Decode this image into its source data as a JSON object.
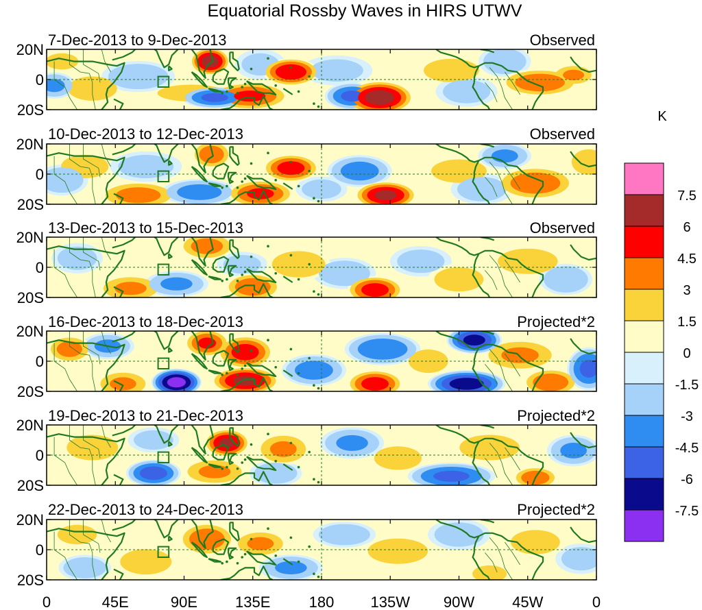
{
  "chart_data": {
    "type": "heatmap",
    "title": "Equatorial Rossby Waves in HIRS UTWV",
    "units": "K",
    "x_ticks": [
      "0",
      "45E",
      "90E",
      "135E",
      "180",
      "135W",
      "90W",
      "45W",
      "0"
    ],
    "y_ticks": [
      "20N",
      "0",
      "20S"
    ],
    "xlim_deg_east": [
      0,
      360
    ],
    "ylim_deg": [
      -20,
      20
    ],
    "colorbar": {
      "levels": [
        "7.5",
        "6",
        "4.5",
        "3",
        "1.5",
        "0",
        "-1.5",
        "-3",
        "-4.5",
        "-6",
        "-7.5"
      ],
      "colors": [
        "#ff77c2",
        "#a52a2a",
        "#ff0000",
        "#ff7a00",
        "#fad23a",
        "#fffcc7",
        "#d8f0fc",
        "#a6d1f8",
        "#2f8df2",
        "#3c63e6",
        "#0a0a8c",
        "#8b2ff0"
      ]
    },
    "panels": [
      {
        "period": "7-Dec-2013 to 9-Dec-2013",
        "label": "Observed",
        "features": [
          {
            "lon": 107,
            "lat": 12,
            "sx": 7,
            "sy": 5,
            "v": 6.5
          },
          {
            "lon": 160,
            "lat": 5,
            "sx": 10,
            "sy": 5,
            "v": 5.5
          },
          {
            "lon": 218,
            "lat": -12,
            "sx": 12,
            "sy": 6,
            "v": 6.5
          },
          {
            "lon": 133,
            "lat": -11,
            "sx": 14,
            "sy": 5,
            "v": 4.5
          },
          {
            "lon": 95,
            "lat": -9,
            "sx": 16,
            "sy": 4,
            "v": 2.5
          },
          {
            "lon": 30,
            "lat": -6,
            "sx": 12,
            "sy": 6,
            "v": 2.2
          },
          {
            "lon": 10,
            "lat": 12,
            "sx": 8,
            "sy": 4,
            "v": 2.2
          },
          {
            "lon": 323,
            "lat": -2,
            "sx": 14,
            "sy": 5,
            "v": 4.0
          },
          {
            "lon": 345,
            "lat": 3,
            "sx": 8,
            "sy": 4,
            "v": 3.0
          },
          {
            "lon": 265,
            "lat": 6,
            "sx": 14,
            "sy": 6,
            "v": 2.0
          },
          {
            "lon": 110,
            "lat": -12,
            "sx": 12,
            "sy": 4,
            "v": -4.5
          },
          {
            "lon": 200,
            "lat": -11,
            "sx": 10,
            "sy": 5,
            "v": -4.5
          },
          {
            "lon": 60,
            "lat": 2,
            "sx": 14,
            "sy": 6,
            "v": -2.5
          },
          {
            "lon": 5,
            "lat": -4,
            "sx": 8,
            "sy": 5,
            "v": -3.0
          },
          {
            "lon": 275,
            "lat": -8,
            "sx": 12,
            "sy": 6,
            "v": -2.0
          },
          {
            "lon": 300,
            "lat": 12,
            "sx": 10,
            "sy": 6,
            "v": -2.5
          },
          {
            "lon": 190,
            "lat": 6,
            "sx": 14,
            "sy": 6,
            "v": -1.8
          },
          {
            "lon": 140,
            "lat": 10,
            "sx": 10,
            "sy": 6,
            "v": -1.8
          }
        ]
      },
      {
        "period": "10-Dec-2013 to 12-Dec-2013",
        "label": "Observed",
        "features": [
          {
            "lon": 108,
            "lat": 13,
            "sx": 7,
            "sy": 5,
            "v": 4.0
          },
          {
            "lon": 160,
            "lat": 4,
            "sx": 10,
            "sy": 5,
            "v": 5.0
          },
          {
            "lon": 222,
            "lat": -14,
            "sx": 11,
            "sy": 5,
            "v": 6.0
          },
          {
            "lon": 140,
            "lat": -13,
            "sx": 12,
            "sy": 5,
            "v": 4.5
          },
          {
            "lon": 60,
            "lat": -14,
            "sx": 14,
            "sy": 5,
            "v": 3.5
          },
          {
            "lon": 25,
            "lat": 5,
            "sx": 12,
            "sy": 6,
            "v": 2.0
          },
          {
            "lon": 320,
            "lat": -6,
            "sx": 14,
            "sy": 6,
            "v": 4.0
          },
          {
            "lon": 355,
            "lat": 8,
            "sx": 8,
            "sy": 6,
            "v": 2.5
          },
          {
            "lon": 270,
            "lat": 2,
            "sx": 14,
            "sy": 6,
            "v": 2.0
          },
          {
            "lon": 100,
            "lat": -12,
            "sx": 14,
            "sy": 5,
            "v": -3.5
          },
          {
            "lon": 205,
            "lat": 2,
            "sx": 12,
            "sy": 6,
            "v": -3.5
          },
          {
            "lon": 65,
            "lat": 5,
            "sx": 14,
            "sy": 6,
            "v": -2.0
          },
          {
            "lon": 10,
            "lat": -4,
            "sx": 10,
            "sy": 6,
            "v": -2.5
          },
          {
            "lon": 285,
            "lat": -10,
            "sx": 12,
            "sy": 6,
            "v": -2.2
          },
          {
            "lon": 300,
            "lat": 12,
            "sx": 10,
            "sy": 5,
            "v": -3.0
          },
          {
            "lon": 180,
            "lat": -10,
            "sx": 10,
            "sy": 5,
            "v": -2.0
          }
        ]
      },
      {
        "period": "13-Dec-2013 to 15-Dec-2013",
        "label": "Observed",
        "features": [
          {
            "lon": 105,
            "lat": 14,
            "sx": 10,
            "sy": 5,
            "v": 3.5
          },
          {
            "lon": 165,
            "lat": 2,
            "sx": 12,
            "sy": 6,
            "v": 2.8
          },
          {
            "lon": 215,
            "lat": -15,
            "sx": 10,
            "sy": 5,
            "v": 5.0
          },
          {
            "lon": 135,
            "lat": -13,
            "sx": 10,
            "sy": 5,
            "v": 4.0
          },
          {
            "lon": 55,
            "lat": -14,
            "sx": 12,
            "sy": 5,
            "v": 3.0
          },
          {
            "lon": 315,
            "lat": 4,
            "sx": 14,
            "sy": 6,
            "v": 2.5
          },
          {
            "lon": 270,
            "lat": -8,
            "sx": 12,
            "sy": 6,
            "v": 2.2
          },
          {
            "lon": 85,
            "lat": -11,
            "sx": 12,
            "sy": 5,
            "v": -3.0
          },
          {
            "lon": 195,
            "lat": -4,
            "sx": 12,
            "sy": 6,
            "v": -2.5
          },
          {
            "lon": 245,
            "lat": 4,
            "sx": 12,
            "sy": 6,
            "v": -2.0
          },
          {
            "lon": 340,
            "lat": -8,
            "sx": 10,
            "sy": 6,
            "v": -2.8
          },
          {
            "lon": 20,
            "lat": 6,
            "sx": 10,
            "sy": 6,
            "v": -2.0
          },
          {
            "lon": 128,
            "lat": 2,
            "sx": 10,
            "sy": 5,
            "v": -1.8
          }
        ]
      },
      {
        "period": "16-Dec-2013 to 18-Dec-2013",
        "label": "Projected*2",
        "features": [
          {
            "lon": 85,
            "lat": -14,
            "sx": 9,
            "sy": 5,
            "v": -7.8
          },
          {
            "lon": 275,
            "lat": -15,
            "sx": 14,
            "sy": 5,
            "v": -6.5
          },
          {
            "lon": 280,
            "lat": 14,
            "sx": 10,
            "sy": 5,
            "v": -6.2
          },
          {
            "lon": 355,
            "lat": -5,
            "sx": 8,
            "sy": 8,
            "v": -4.5
          },
          {
            "lon": 220,
            "lat": 8,
            "sx": 14,
            "sy": 6,
            "v": -4.0
          },
          {
            "lon": 175,
            "lat": -6,
            "sx": 12,
            "sy": 6,
            "v": -3.5
          },
          {
            "lon": 40,
            "lat": 10,
            "sx": 10,
            "sy": 5,
            "v": -3.0
          },
          {
            "lon": 130,
            "lat": -13,
            "sx": 12,
            "sy": 5,
            "v": 6.0
          },
          {
            "lon": 130,
            "lat": 6,
            "sx": 10,
            "sy": 6,
            "v": 5.0
          },
          {
            "lon": 105,
            "lat": 12,
            "sx": 8,
            "sy": 5,
            "v": 4.5
          },
          {
            "lon": 215,
            "lat": -15,
            "sx": 10,
            "sy": 5,
            "v": 5.0
          },
          {
            "lon": 330,
            "lat": -14,
            "sx": 10,
            "sy": 5,
            "v": 4.0
          },
          {
            "lon": 310,
            "lat": 4,
            "sx": 14,
            "sy": 6,
            "v": 3.0
          },
          {
            "lon": 50,
            "lat": -15,
            "sx": 10,
            "sy": 5,
            "v": 3.0
          },
          {
            "lon": 15,
            "lat": 8,
            "sx": 8,
            "sy": 5,
            "v": 3.5
          },
          {
            "lon": 250,
            "lat": 0,
            "sx": 10,
            "sy": 6,
            "v": 2.0
          }
        ]
      },
      {
        "period": "19-Dec-2013 to 21-Dec-2013",
        "label": "Projected*2",
        "features": [
          {
            "lon": 118,
            "lat": 8,
            "sx": 8,
            "sy": 5,
            "v": 6.0
          },
          {
            "lon": 155,
            "lat": 4,
            "sx": 10,
            "sy": 6,
            "v": 3.0
          },
          {
            "lon": 320,
            "lat": -15,
            "sx": 8,
            "sy": 4,
            "v": 4.0
          },
          {
            "lon": 110,
            "lat": -11,
            "sx": 12,
            "sy": 5,
            "v": 3.0
          },
          {
            "lon": 30,
            "lat": 5,
            "sx": 12,
            "sy": 6,
            "v": 2.5
          },
          {
            "lon": 290,
            "lat": 5,
            "sx": 14,
            "sy": 6,
            "v": 2.5
          },
          {
            "lon": 230,
            "lat": -2,
            "sx": 12,
            "sy": 6,
            "v": 2.0
          },
          {
            "lon": 70,
            "lat": -12,
            "sx": 10,
            "sy": 5,
            "v": -5.0
          },
          {
            "lon": 265,
            "lat": -14,
            "sx": 16,
            "sy": 5,
            "v": -4.5
          },
          {
            "lon": 200,
            "lat": 8,
            "sx": 12,
            "sy": 6,
            "v": -3.0
          },
          {
            "lon": 345,
            "lat": 3,
            "sx": 10,
            "sy": 6,
            "v": -3.0
          },
          {
            "lon": 150,
            "lat": -12,
            "sx": 10,
            "sy": 5,
            "v": -2.5
          },
          {
            "lon": 70,
            "lat": 10,
            "sx": 10,
            "sy": 5,
            "v": -2.0
          }
        ]
      },
      {
        "period": "22-Dec-2013 to 24-Dec-2013",
        "label": "Projected*2",
        "features": [
          {
            "lon": 105,
            "lat": 7,
            "sx": 10,
            "sy": 6,
            "v": 4.0
          },
          {
            "lon": 140,
            "lat": 4,
            "sx": 10,
            "sy": 5,
            "v": 3.0
          },
          {
            "lon": 65,
            "lat": -8,
            "sx": 12,
            "sy": 6,
            "v": 2.5
          },
          {
            "lon": 230,
            "lat": -1,
            "sx": 14,
            "sy": 6,
            "v": 2.5
          },
          {
            "lon": 320,
            "lat": 5,
            "sx": 12,
            "sy": 6,
            "v": 2.2
          },
          {
            "lon": 20,
            "lat": 10,
            "sx": 10,
            "sy": 5,
            "v": 2.0
          },
          {
            "lon": 290,
            "lat": -16,
            "sx": 8,
            "sy": 4,
            "v": 2.5
          },
          {
            "lon": 160,
            "lat": -12,
            "sx": 12,
            "sy": 5,
            "v": -3.0
          },
          {
            "lon": 195,
            "lat": 10,
            "sx": 12,
            "sy": 5,
            "v": -2.5
          },
          {
            "lon": 25,
            "lat": -12,
            "sx": 10,
            "sy": 5,
            "v": -2.5
          },
          {
            "lon": 270,
            "lat": 10,
            "sx": 12,
            "sy": 6,
            "v": -2.2
          },
          {
            "lon": 350,
            "lat": -6,
            "sx": 10,
            "sy": 6,
            "v": -2.0
          }
        ]
      }
    ]
  }
}
